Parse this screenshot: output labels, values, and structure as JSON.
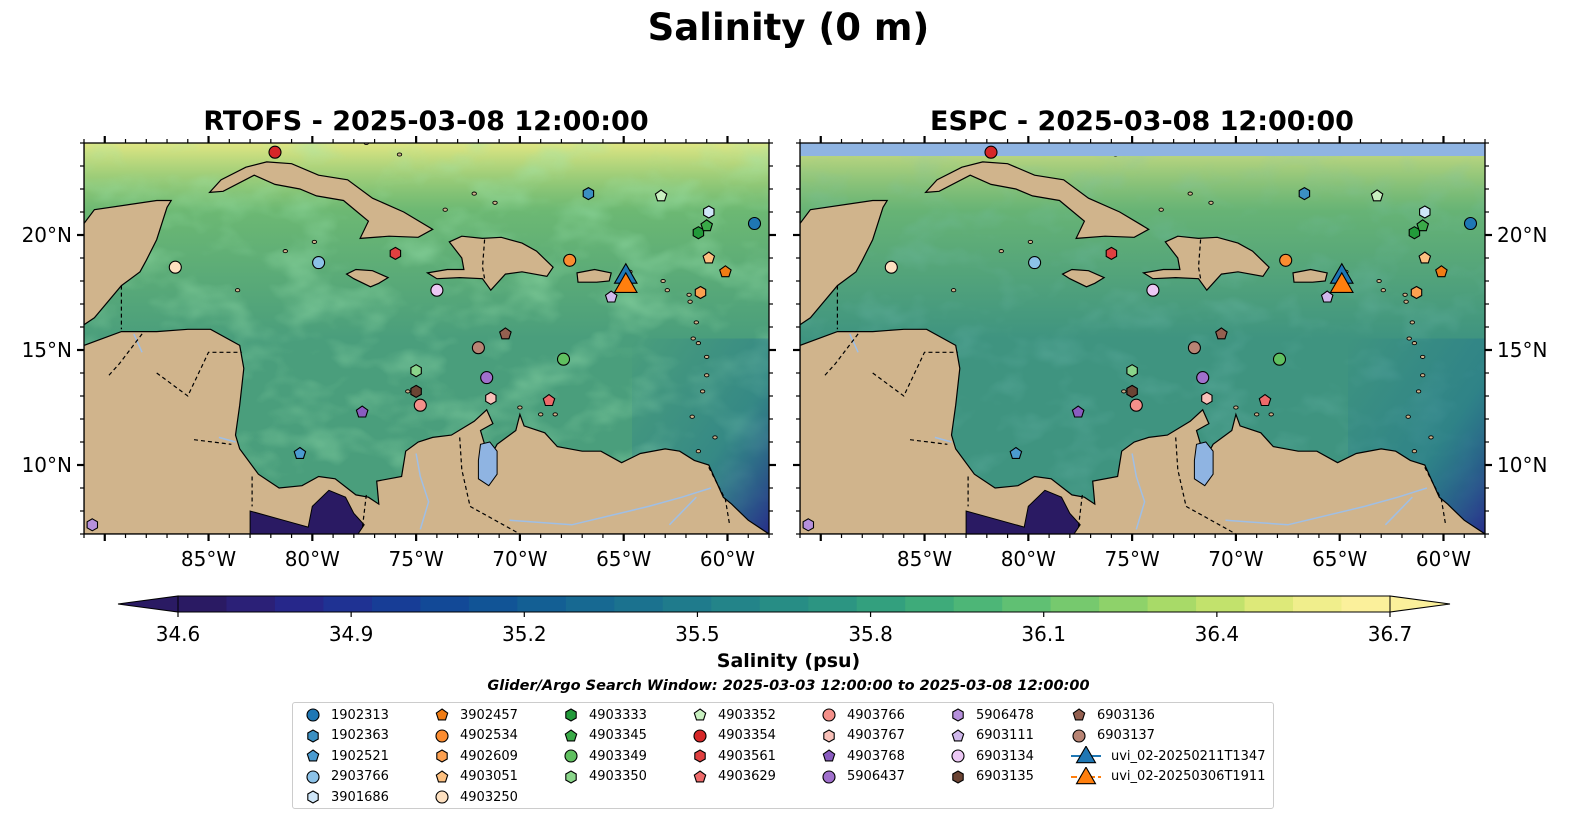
{
  "title": "Salinity (0 m)",
  "panels": [
    {
      "title": "RTOFS - 2025-03-08 12:00:00"
    },
    {
      "title": "ESPC - 2025-03-08 12:00:00"
    }
  ],
  "map_extent": {
    "lon": [
      -91,
      -58
    ],
    "lat": [
      7,
      24
    ]
  },
  "lon_ticks": [
    {
      "value": -85,
      "label": "85°W"
    },
    {
      "value": -80,
      "label": "80°W"
    },
    {
      "value": -75,
      "label": "75°W"
    },
    {
      "value": -70,
      "label": "70°W"
    },
    {
      "value": -65,
      "label": "65°W"
    },
    {
      "value": -60,
      "label": "60°W"
    }
  ],
  "lat_ticks": [
    {
      "value": 20,
      "label": "20°N"
    },
    {
      "value": 15,
      "label": "15°N"
    },
    {
      "value": 10,
      "label": "10°N"
    }
  ],
  "colorbar": {
    "label": "Salinity (psu)",
    "min": 34.6,
    "max": 36.7,
    "ticks": [
      "34.6",
      "34.9",
      "35.2",
      "35.5",
      "35.8",
      "36.1",
      "36.4",
      "36.7"
    ],
    "colors": [
      "#2a1a63",
      "#2b2077",
      "#26278a",
      "#1f3293",
      "#173d96",
      "#124997",
      "#115496",
      "#135f94",
      "#176992",
      "#1b728f",
      "#1f7b8c",
      "#238489",
      "#278d85",
      "#2c9582",
      "#33a07e",
      "#3eab7a",
      "#4db677",
      "#60c073",
      "#76c96e",
      "#8ed26a",
      "#a8da68",
      "#c2e26c",
      "#dde979",
      "#f0ee8c",
      "#fbf09b"
    ]
  },
  "search_window": "Glider/Argo Search Window: 2025-03-03 12:00:00 to 2025-03-08 12:00:00",
  "land_color": "#d0b48c",
  "lake_color": "#8fb4e2",
  "legend": [
    {
      "label": "1902313",
      "shape": "circle",
      "color": "#1f77b4"
    },
    {
      "label": "1902363",
      "shape": "hexagon",
      "color": "#3b8fc2"
    },
    {
      "label": "1902521",
      "shape": "pentagon",
      "color": "#4b9bd0"
    },
    {
      "label": "2903766",
      "shape": "circle",
      "color": "#8cc2e8"
    },
    {
      "label": "3901686",
      "shape": "hexagon",
      "color": "#cfe6f8"
    },
    {
      "label": "3902457",
      "shape": "pentagon",
      "color": "#f07c14"
    },
    {
      "label": "4902534",
      "shape": "circle",
      "color": "#fb8c30"
    },
    {
      "label": "4902609",
      "shape": "hexagon",
      "color": "#fca050"
    },
    {
      "label": "4903051",
      "shape": "pentagon",
      "color": "#fdc080"
    },
    {
      "label": "4903250",
      "shape": "circle",
      "color": "#fde0c0"
    },
    {
      "label": "4903333",
      "shape": "hexagon",
      "color": "#229a3a"
    },
    {
      "label": "4903345",
      "shape": "pentagon",
      "color": "#3aaa48"
    },
    {
      "label": "4903349",
      "shape": "circle",
      "color": "#60c060"
    },
    {
      "label": "4903350",
      "shape": "hexagon",
      "color": "#8ad58a"
    },
    {
      "label": "4903352",
      "shape": "pentagon",
      "color": "#c8f0c0"
    },
    {
      "label": "4903354",
      "shape": "circle",
      "color": "#d62728"
    },
    {
      "label": "4903561",
      "shape": "hexagon",
      "color": "#e04040"
    },
    {
      "label": "4903629",
      "shape": "pentagon",
      "color": "#ee6a6a"
    },
    {
      "label": "4903766",
      "shape": "circle",
      "color": "#f4908a"
    },
    {
      "label": "4903767",
      "shape": "hexagon",
      "color": "#f8c0b8"
    },
    {
      "label": "4903768",
      "shape": "pentagon",
      "color": "#8a5cc0"
    },
    {
      "label": "5906437",
      "shape": "circle",
      "color": "#a070cc"
    },
    {
      "label": "5906478",
      "shape": "hexagon",
      "color": "#b690dc"
    },
    {
      "label": "6903111",
      "shape": "pentagon",
      "color": "#d0b8ec"
    },
    {
      "label": "6903134",
      "shape": "circle",
      "color": "#ecc8f4"
    },
    {
      "label": "6903135",
      "shape": "hexagon",
      "color": "#6b4434"
    },
    {
      "label": "6903136",
      "shape": "pentagon",
      "color": "#946050"
    },
    {
      "label": "6903137",
      "shape": "circle",
      "color": "#b88474"
    },
    {
      "label": "uvi_02-20250211T1347",
      "shape": "triangle",
      "color": "#1f77b4"
    },
    {
      "label": "uvi_02-20250306T1911",
      "shape": "triangle",
      "color": "#ff7f0e"
    }
  ],
  "markers": [
    {
      "id": "1902313",
      "lon": -58.7,
      "lat": 20.5
    },
    {
      "id": "1902363",
      "lon": -66.7,
      "lat": 21.8
    },
    {
      "id": "1902521",
      "lon": -80.6,
      "lat": 10.5
    },
    {
      "id": "2903766",
      "lon": -79.7,
      "lat": 18.8
    },
    {
      "id": "3901686",
      "lon": -60.9,
      "lat": 21.0
    },
    {
      "id": "3902457",
      "lon": -60.1,
      "lat": 18.4
    },
    {
      "id": "4902534",
      "lon": -67.6,
      "lat": 18.9
    },
    {
      "id": "4902609",
      "lon": -61.3,
      "lat": 17.5
    },
    {
      "id": "4903051",
      "lon": -60.9,
      "lat": 19.0
    },
    {
      "id": "4903250",
      "lon": -86.6,
      "lat": 18.6
    },
    {
      "id": "4903333",
      "lon": -61.4,
      "lat": 20.1
    },
    {
      "id": "4903345",
      "lon": -61.0,
      "lat": 20.4
    },
    {
      "id": "4903349",
      "lon": -67.9,
      "lat": 14.6
    },
    {
      "id": "4903350",
      "lon": -75.0,
      "lat": 14.1
    },
    {
      "id": "4903352",
      "lon": -63.2,
      "lat": 21.7
    },
    {
      "id": "4903354",
      "lon": -81.8,
      "lat": 23.6
    },
    {
      "id": "4903561",
      "lon": -76.0,
      "lat": 19.2
    },
    {
      "id": "4903629",
      "lon": -68.6,
      "lat": 12.8
    },
    {
      "id": "4903766",
      "lon": -74.8,
      "lat": 12.6
    },
    {
      "id": "4903767",
      "lon": -71.4,
      "lat": 12.9
    },
    {
      "id": "4903768",
      "lon": -77.6,
      "lat": 12.3
    },
    {
      "id": "5906437",
      "lon": -71.6,
      "lat": 13.8
    },
    {
      "id": "5906478",
      "lon": -90.6,
      "lat": 7.4
    },
    {
      "id": "6903111",
      "lon": -65.6,
      "lat": 17.3
    },
    {
      "id": "6903134",
      "lon": -74.0,
      "lat": 17.6
    },
    {
      "id": "6903135",
      "lon": -75.0,
      "lat": 13.2
    },
    {
      "id": "6903136",
      "lon": -70.7,
      "lat": 15.7
    },
    {
      "id": "6903137",
      "lon": -72.0,
      "lat": 15.1
    },
    {
      "id": "uvi_02-20250211T1347",
      "lon": -64.9,
      "lat": 18.3
    },
    {
      "id": "uvi_02-20250306T1911",
      "lon": -64.9,
      "lat": 17.9
    }
  ]
}
